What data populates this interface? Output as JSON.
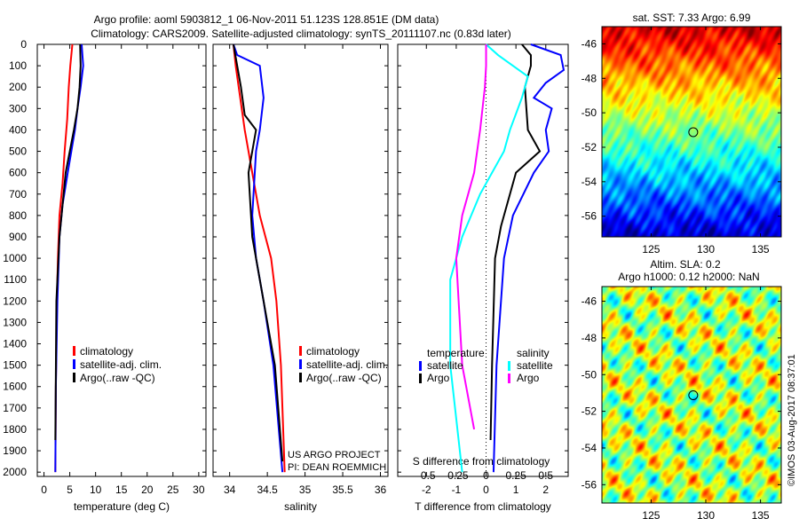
{
  "title_line1": "Argo profile: aoml 5903812_1 06-Nov-2011 51.123S 128.851E (DM data)",
  "title_line2": "Climatology: CARS2009. Satellite-adjusted climatology: synTS_20111107.nc (0.83d later)",
  "credit": "©IMOS 03-Aug-2017 08:37:01",
  "project_line1": "US ARGO PROJECT",
  "project_line2": "PI: DEAN ROEMMICH",
  "colors": {
    "climatology": "#ff0000",
    "satellite": "#0000ff",
    "argo": "#000000",
    "s_satellite": "#00ffff",
    "s_argo": "#ff00ff"
  },
  "chart_data": [
    {
      "type": "line",
      "xlabel": "temperature (deg C)",
      "xlim": [
        -1.3,
        31.4
      ],
      "ylim": [
        2020,
        0
      ],
      "xticks": [
        0,
        5,
        10,
        15,
        20,
        25,
        30
      ],
      "yticks": [
        0,
        100,
        200,
        300,
        400,
        500,
        600,
        700,
        800,
        900,
        1000,
        1100,
        1200,
        1300,
        1400,
        1500,
        1600,
        1700,
        1800,
        1900,
        2000
      ],
      "legend": [
        "climatology",
        "satellite-adj. clim.",
        "Argo(..raw -QC)"
      ],
      "series": [
        {
          "name": "climatology",
          "color": "#ff0000",
          "x": [
            5.5,
            5.1,
            4.8,
            4.5,
            4.0,
            3.6,
            3.0,
            2.7,
            2.5,
            2.3,
            2.2
          ],
          "depth": [
            0,
            100,
            200,
            350,
            500,
            650,
            800,
            1000,
            1200,
            1600,
            2000
          ]
        },
        {
          "name": "satellite-adj. clim.",
          "color": "#0000ff",
          "x": [
            7.3,
            7.6,
            7.1,
            6.5,
            6.0,
            4.6,
            3.6,
            3.0,
            2.6,
            2.3,
            2.2
          ],
          "depth": [
            0,
            100,
            200,
            300,
            400,
            600,
            750,
            900,
            1200,
            1600,
            2000
          ]
        },
        {
          "name": "Argo(..raw -QC)",
          "color": "#000000",
          "x": [
            7.0,
            7.1,
            6.9,
            6.5,
            5.8,
            5.0,
            4.2,
            3.0,
            2.4,
            2.2
          ],
          "depth": [
            0,
            100,
            200,
            300,
            400,
            500,
            600,
            900,
            1200,
            1850
          ]
        }
      ]
    },
    {
      "type": "line",
      "xlabel": "salinity",
      "xlim": [
        33.78,
        36.1
      ],
      "ylim": [
        2020,
        0
      ],
      "xticks": [
        34,
        34.5,
        35,
        35.5,
        36
      ],
      "legend": [
        "climatology",
        "satellite-adj. clim.",
        "Argo(..raw -QC)"
      ],
      "series": [
        {
          "name": "climatology",
          "color": "#ff0000",
          "x": [
            34.05,
            34.08,
            34.12,
            34.2,
            34.3,
            34.4,
            34.55,
            34.62,
            34.68,
            34.73
          ],
          "depth": [
            0,
            100,
            200,
            400,
            600,
            800,
            1000,
            1200,
            1500,
            2000
          ]
        },
        {
          "name": "satellite-adj. clim.",
          "color": "#0000ff",
          "x": [
            34.05,
            34.1,
            34.4,
            34.45,
            34.4,
            34.35,
            34.3,
            34.35,
            34.45,
            34.58,
            34.7
          ],
          "depth": [
            0,
            50,
            100,
            250,
            400,
            500,
            800,
            1000,
            1200,
            1500,
            2000
          ]
        },
        {
          "name": "Argo(..raw -QC)",
          "color": "#000000",
          "x": [
            34.05,
            34.1,
            34.15,
            34.2,
            34.35,
            34.3,
            34.25,
            34.3,
            34.45,
            34.6,
            34.7
          ],
          "depth": [
            0,
            100,
            200,
            330,
            400,
            500,
            600,
            900,
            1200,
            1500,
            1950
          ]
        }
      ]
    },
    {
      "type": "line",
      "xlabel": "T difference from climatology",
      "xlabel2": "S difference from climatology",
      "xlim": [
        -2.96,
        2.75
      ],
      "ylim": [
        2020,
        0
      ],
      "xticks": [
        -2,
        -1,
        0,
        1,
        2
      ],
      "xticks2": [
        -0.5,
        -0.25,
        0,
        0.25,
        0.5
      ],
      "xtick2_labels": [
        "-0.5",
        "-0.25",
        "0",
        "0.25",
        "0.5"
      ],
      "legend_temperature": {
        "title": "temperature",
        "items": [
          "satellite",
          "Argo"
        ]
      },
      "legend_salinity": {
        "title": "salinity",
        "items": [
          "satellite",
          "Argo"
        ]
      },
      "series": [
        {
          "name": "T satellite",
          "color": "#0000ff",
          "x": [
            1.5,
            2.5,
            2.6,
            2.0,
            1.6,
            2.2,
            2.0,
            2.1,
            1.6,
            0.9,
            0.6,
            0.35,
            0.25
          ],
          "depth": [
            0,
            50,
            120,
            180,
            250,
            300,
            400,
            500,
            600,
            800,
            1000,
            1500,
            2000
          ]
        },
        {
          "name": "T Argo",
          "color": "#000000",
          "x": [
            1.2,
            1.5,
            1.5,
            1.3,
            1.4,
            1.8,
            1.0,
            0.5,
            0.3,
            0.2,
            0.15
          ],
          "depth": [
            0,
            50,
            100,
            200,
            400,
            500,
            600,
            850,
            1000,
            1500,
            1850
          ]
        },
        {
          "name": "S satellite",
          "color": "#00ffff",
          "unit": "S",
          "x": [
            0,
            0.1,
            0.35,
            0.3,
            0.2,
            0.15,
            -0.05,
            -0.2,
            -0.3,
            -0.3,
            -0.2
          ],
          "depth": [
            0,
            50,
            150,
            250,
            400,
            500,
            700,
            900,
            1100,
            1500,
            2000
          ]
        },
        {
          "name": "S Argo",
          "color": "#ff00ff",
          "unit": "S",
          "x": [
            0,
            0,
            -0.01,
            -0.05,
            -0.1,
            -0.2,
            -0.25,
            -0.2,
            -0.1
          ],
          "depth": [
            0,
            100,
            200,
            400,
            600,
            800,
            1000,
            1500,
            1800
          ]
        }
      ]
    },
    {
      "type": "heatmap",
      "title": "sat. SST: 7.33 Argo: 6.99",
      "xlim": [
        120.5,
        136.9
      ],
      "ylim": [
        -57.2,
        -45.0
      ],
      "xticks": [
        125,
        130,
        135
      ],
      "yticks": [
        -46,
        -48,
        -50,
        -52,
        -54,
        -56
      ],
      "marker": {
        "lon": 128.851,
        "lat": -51.123
      }
    },
    {
      "type": "heatmap",
      "title": "Altim. SLA: 0.2",
      "subtitle": "Argo h1000: 0.12 h2000: NaN",
      "xlim": [
        120.5,
        136.9
      ],
      "ylim": [
        -57.0,
        -45.2
      ],
      "xticks": [
        125,
        130,
        135
      ],
      "yticks": [
        -46,
        -48,
        -50,
        -52,
        -54,
        -56
      ],
      "marker": {
        "lon": 128.851,
        "lat": -51.123
      }
    }
  ]
}
